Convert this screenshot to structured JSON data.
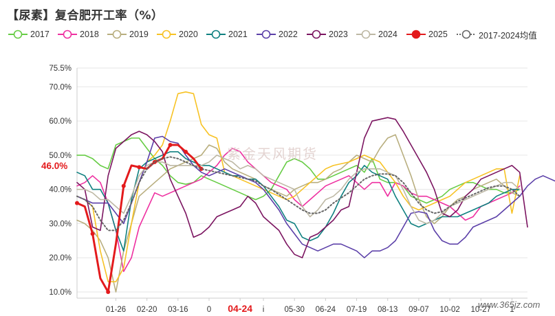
{
  "title": "【尿素】复合肥开工率（%）",
  "watermark": "紫金天风期货",
  "site_watermark": "www.365jz.com",
  "current_value_label": "46.0%",
  "highlight_tick": "04-24",
  "chart_data": {
    "type": "line",
    "ylim": [
      9.0,
      75.5
    ],
    "ylabel": "",
    "xlabel": "",
    "y_ticks": [
      "10.0%",
      "20.0%",
      "30.0%",
      "40.0%",
      "50.0%",
      "60.0%",
      "70.0%",
      "75.5%"
    ],
    "y_tick_values": [
      10.0,
      20.0,
      30.0,
      40.0,
      50.0,
      60.0,
      70.0,
      75.5
    ],
    "x_tick_labels": [
      "01-26",
      "02-20",
      "03-16",
      "0",
      "04-24",
      "i",
      "05-30",
      "06-24",
      "07-19",
      "08-13",
      "09-07",
      "10-02",
      "10-27",
      "1"
    ],
    "x_tick_weeks": [
      5,
      9,
      13,
      17,
      21,
      24,
      28,
      32,
      36,
      40,
      44,
      48,
      52,
      56
    ],
    "legend": "top",
    "series": [
      {
        "name": "2017",
        "color": "#66cc44",
        "values": [
          50,
          50,
          49,
          47,
          46,
          53,
          54,
          55,
          55,
          52,
          49,
          47,
          44,
          42,
          41.5,
          42,
          44,
          43,
          42,
          41,
          40,
          39,
          38,
          37,
          38,
          40,
          44,
          48,
          49,
          48,
          46,
          43,
          43,
          44,
          45,
          46,
          47,
          45,
          49,
          43,
          42,
          42,
          41,
          38,
          37,
          36,
          37,
          38,
          40,
          41,
          42,
          42,
          41,
          40,
          40,
          39,
          39,
          40
        ]
      },
      {
        "name": "2018",
        "color": "#ee2fa0",
        "values": [
          41,
          42,
          44,
          42,
          36,
          28,
          16,
          20,
          29,
          34,
          39,
          38,
          39,
          40,
          41,
          42,
          43,
          45,
          47,
          50,
          52,
          51,
          48,
          46,
          44,
          42,
          41,
          40,
          37,
          35,
          37,
          39,
          41,
          42,
          43,
          44,
          42,
          40,
          42,
          42,
          38,
          42,
          41,
          39,
          38,
          38,
          37,
          36,
          35,
          33,
          31,
          32,
          35,
          36,
          37,
          38,
          39,
          41
        ]
      },
      {
        "name": "2019",
        "color": "#b8ae7e",
        "values": [
          31,
          30,
          28,
          25,
          20,
          10,
          22,
          30,
          38,
          40,
          42,
          44,
          46,
          47,
          48,
          49,
          50,
          53,
          52,
          48,
          46,
          45,
          44,
          43,
          41,
          40,
          39,
          38,
          40,
          41,
          42,
          42,
          43,
          45,
          46,
          48,
          50,
          49,
          48,
          52,
          55,
          56,
          50,
          44,
          37,
          32,
          30,
          32,
          35,
          37,
          38,
          40,
          41,
          42,
          43,
          41,
          39,
          38
        ]
      },
      {
        "name": "2020",
        "color": "#f7c223",
        "values": [
          38,
          37,
          35,
          22,
          13,
          13,
          17,
          30,
          42,
          48,
          50,
          53,
          60,
          68,
          68.5,
          68,
          59,
          56,
          55,
          45,
          44,
          43,
          42,
          41,
          40,
          39,
          38,
          37,
          38,
          40,
          42,
          44,
          46,
          47,
          47.5,
          48,
          49,
          50,
          49,
          48,
          45,
          42,
          38,
          35,
          34,
          35,
          36,
          37,
          38,
          40,
          42,
          43,
          44,
          45,
          46,
          46,
          33,
          44
        ]
      },
      {
        "name": "2021",
        "color": "#0f8080",
        "values": [
          45,
          44,
          40,
          40,
          36,
          28,
          22,
          37,
          46,
          48,
          49,
          50,
          51,
          51,
          49,
          48,
          47,
          47,
          46,
          45,
          44,
          44,
          43,
          43,
          41,
          38,
          35,
          31,
          30,
          26,
          25,
          26,
          29,
          33,
          38,
          42,
          44,
          47,
          45,
          44,
          43,
          38,
          34,
          30,
          29,
          30,
          31,
          32,
          32,
          32,
          33,
          34,
          35,
          36,
          38,
          39,
          40,
          40
        ]
      },
      {
        "name": "2022",
        "color": "#5b3fa8",
        "values": [
          38,
          37,
          36,
          36,
          36,
          33,
          30,
          36,
          42,
          48,
          55,
          55.5,
          54,
          53.5,
          50,
          47,
          45,
          44,
          45,
          46,
          45,
          44,
          43,
          42,
          40,
          37,
          34,
          30,
          27,
          24,
          23,
          22,
          23,
          24,
          24,
          23,
          22,
          20,
          22,
          22,
          23,
          25,
          29,
          33,
          33.5,
          33,
          28,
          25,
          24,
          24,
          26,
          29,
          30,
          31,
          32,
          34,
          36,
          38,
          41,
          43,
          44,
          43,
          42
        ]
      },
      {
        "name": "2023",
        "color": "#7b1460",
        "values": [
          42,
          40,
          29,
          28,
          44,
          52,
          54,
          56,
          57,
          56,
          54,
          51,
          43,
          38,
          33,
          26,
          27,
          29,
          32,
          33,
          34,
          35,
          38,
          36,
          32,
          30,
          28,
          24,
          21,
          20,
          26,
          27,
          29,
          31,
          34,
          35,
          45,
          55,
          60,
          60.5,
          61,
          60.5,
          57,
          53,
          49,
          45,
          40,
          33,
          32,
          34,
          38,
          40,
          43,
          44,
          45,
          46,
          47,
          45,
          29
        ]
      },
      {
        "name": "2024",
        "color": "#bdb8a4",
        "values": [
          40,
          40,
          39,
          37,
          37,
          35,
          33,
          38,
          44,
          47,
          48,
          48,
          47,
          47,
          47,
          47,
          47,
          48,
          50,
          49,
          48,
          46,
          47,
          46,
          44,
          43,
          42,
          41,
          40,
          35,
          32,
          34,
          37,
          38,
          40,
          43,
          45,
          46,
          46,
          46,
          45,
          44,
          40,
          35,
          31,
          30,
          31,
          33,
          35,
          36,
          37,
          38,
          39,
          40,
          41,
          42,
          42,
          40
        ]
      },
      {
        "name": "2025",
        "color": "#e31a1c",
        "values": [
          36,
          35,
          27,
          14,
          10,
          24,
          41,
          47,
          46.5,
          46,
          48,
          49,
          53,
          53,
          51,
          49,
          46
        ]
      },
      {
        "name": "2017-2024均值",
        "color": "#666666",
        "dashed": true,
        "values": [
          38,
          37,
          35,
          31,
          28,
          28,
          31,
          36,
          42,
          46,
          48,
          49,
          49.5,
          49,
          48,
          47,
          46,
          45.5,
          45,
          44.5,
          44,
          43.5,
          43,
          42.5,
          41,
          40,
          38.5,
          37,
          35.5,
          34,
          33,
          33,
          34,
          36,
          37.5,
          39,
          41,
          43,
          44,
          44.5,
          44.5,
          44,
          42,
          39,
          36,
          34,
          33,
          33.5,
          35,
          36.5,
          37.5,
          38.5,
          39.5,
          40.5,
          41,
          41,
          40,
          38
        ]
      }
    ]
  }
}
